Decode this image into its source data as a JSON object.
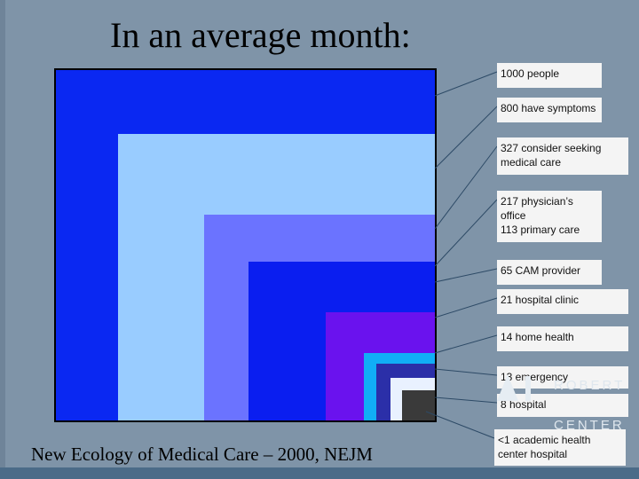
{
  "title": "In an average month:",
  "citation": "New Ecology of Medical Care – 2000, NEJM",
  "logo": {
    "line1": "ROBERT",
    "line2": "CENTER"
  },
  "levels": [
    {
      "label": "1000 people",
      "color": "#0a28f2"
    },
    {
      "label": "800 have symptoms",
      "color": "#99ccff"
    },
    {
      "label": "327 consider seeking medical care",
      "color": "#6b73ff"
    },
    {
      "label": "217 physician’s\n            office\n113 primary care",
      "color": "#0a1ef0"
    },
    {
      "label": "65 CAM provider",
      "color": "#0a1ef0"
    },
    {
      "label": "21  hospital clinic",
      "color": "#6a12ee"
    },
    {
      "label": "14 home health",
      "color": "#11aef6"
    },
    {
      "label": "13 emergency",
      "color": "#2b2fa8"
    },
    {
      "label": "8 hospital",
      "color": "#e9f1ff"
    },
    {
      "label": "<1 academic health center hospital",
      "color": "#3a3a3a"
    }
  ],
  "colors": {
    "background": "#7f94a8",
    "label_bg": "#f4f4f4",
    "leader": "#2d4a66"
  }
}
